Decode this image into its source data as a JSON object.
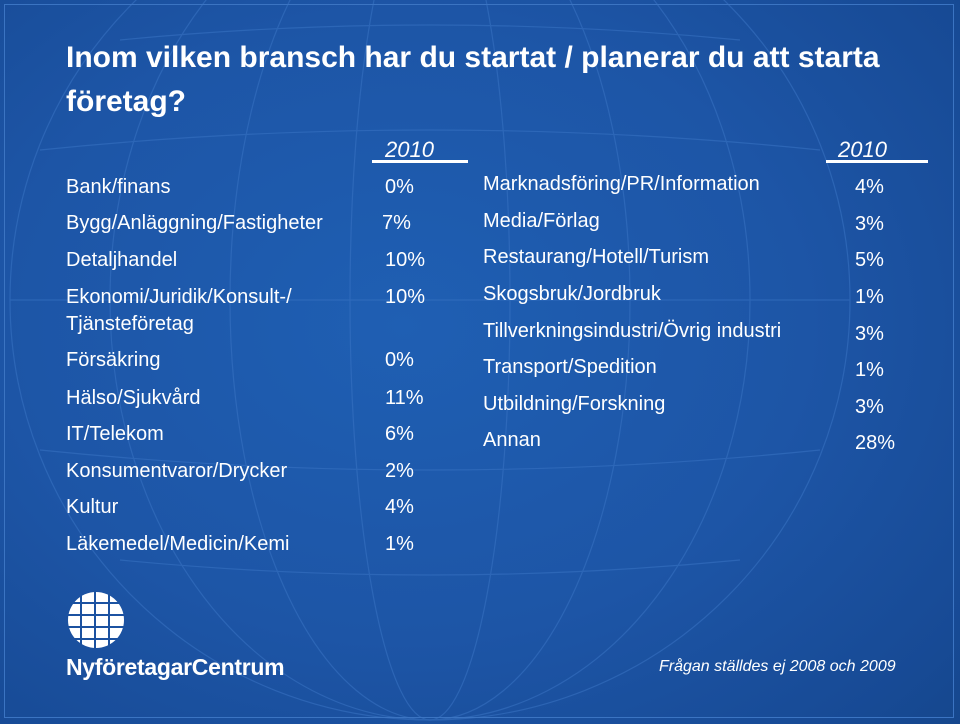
{
  "title": "Inom vilken bransch har du startat / planerar du att starta företag?",
  "left_column": {
    "year": "2010",
    "rows": [
      {
        "label": "Bank/finans",
        "value": "0%"
      },
      {
        "label": "Bygg/Anläggning/Fastigheter",
        "value": "7%"
      },
      {
        "label": "Detaljhandel",
        "value": "10%"
      },
      {
        "label": "Ekonomi/Juridik/Konsult-/",
        "label2": "Tjänsteföretag",
        "value": "10%"
      },
      {
        "label": "Försäkring",
        "value": "0%"
      },
      {
        "label": "Hälso/Sjukvård",
        "value": "11%"
      },
      {
        "label": "IT/Telekom",
        "value": "6%"
      },
      {
        "label": "Konsumentvaror/Drycker",
        "value": "2%"
      },
      {
        "label": "Kultur",
        "value": "4%"
      },
      {
        "label": "Läkemedel/Medicin/Kemi",
        "value": "1%"
      }
    ]
  },
  "right_column": {
    "year": "2010",
    "rows": [
      {
        "label": "Marknadsföring/PR/Information",
        "value": "4%"
      },
      {
        "label": "Media/Förlag",
        "value": "3%"
      },
      {
        "label": "Restaurang/Hotell/Turism",
        "value": "5%"
      },
      {
        "label": "Skogsbruk/Jordbruk",
        "value": "1%"
      },
      {
        "label": "Tillverkningsindustri/Övrig industri",
        "value": "3%"
      },
      {
        "label": "Transport/Spedition",
        "value": "1%"
      },
      {
        "label": "Utbildning/Forskning",
        "value": "3%"
      },
      {
        "label": "Annan",
        "value": "28%"
      }
    ]
  },
  "logo": {
    "text": "NyföretagarCentrum",
    "icon": "globe-grid-icon"
  },
  "footnote": "Frågan ställdes ej 2008 och 2009",
  "colors": {
    "background": "#1d55a6",
    "text": "#ffffff"
  }
}
